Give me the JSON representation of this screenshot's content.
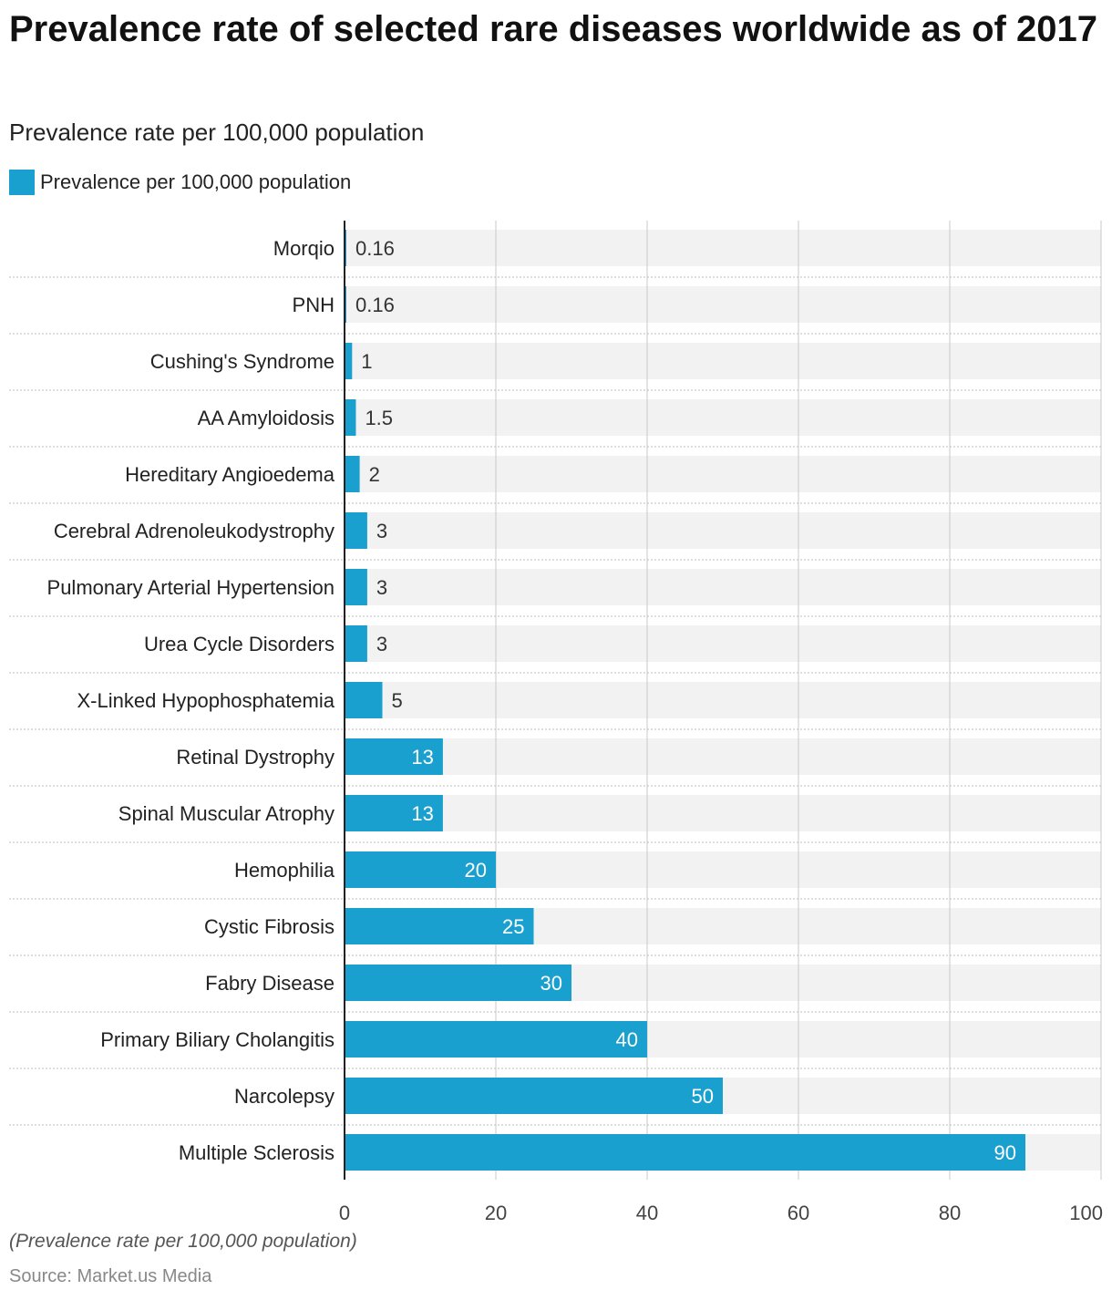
{
  "title": "Prevalence rate of selected rare diseases worldwide as of 2017",
  "subtitle": "Prevalence rate per 100,000 population",
  "footnote": "(Prevalence rate per 100,000 population)",
  "source": "Source: Market.us Media",
  "colors": {
    "bar": "#1aa0cf",
    "band": "#f2f2f2",
    "grid": "#c8c8c8",
    "axis": "#222222"
  },
  "chart_data": {
    "type": "bar",
    "orientation": "horizontal",
    "categories": [
      "Morqio",
      "PNH",
      "Cushing's Syndrome",
      "AA Amyloidosis",
      "Hereditary Angioedema",
      "Cerebral Adrenoleukodystrophy",
      "Pulmonary Arterial Hypertension",
      "Urea Cycle Disorders",
      "X-Linked Hypophosphatemia",
      "Retinal Dystrophy",
      "Spinal Muscular Atrophy",
      "Hemophilia",
      "Cystic Fibrosis",
      "Fabry Disease",
      "Primary Biliary Cholangitis",
      "Narcolepsy",
      "Multiple Sclerosis"
    ],
    "series": [
      {
        "name": "Prevalence per 100,000 population",
        "values": [
          0.16,
          0.16,
          1,
          1.5,
          2,
          3,
          3,
          3,
          5,
          13,
          13,
          20,
          25,
          30,
          40,
          50,
          90
        ],
        "labels": [
          "0.16",
          "0.16",
          "1",
          "1.5",
          "2",
          "3",
          "3",
          "3",
          "5",
          "13",
          "13",
          "20",
          "25",
          "30",
          "40",
          "50",
          "90"
        ]
      }
    ],
    "xlim": [
      0,
      100
    ],
    "xticks": [
      0,
      20,
      40,
      60,
      80,
      100
    ],
    "xticklabels": [
      "0",
      "20",
      "40",
      "60",
      "80",
      "100"
    ],
    "grid": true,
    "legend_position": "top-left"
  }
}
